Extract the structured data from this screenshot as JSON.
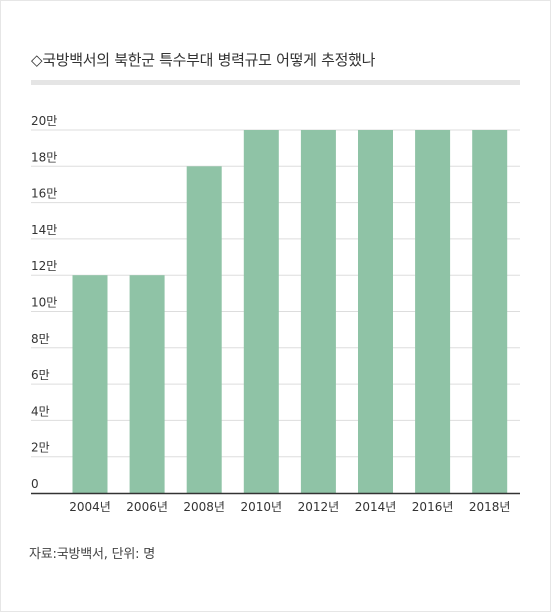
{
  "title": "◇국방백서의 북한군 특수부대 병력규모 어떻게 추정했나",
  "source": "자료:국방백서, 단위: 명",
  "colors": {
    "bar": "#8fc3a6",
    "grid": "#dddddd",
    "axis": "#333333",
    "title_rule": "#e5e5e5"
  },
  "chart_data": {
    "type": "bar",
    "categories": [
      "2004년",
      "2006년",
      "2008년",
      "2010년",
      "2012년",
      "2014년",
      "2016년",
      "2018년"
    ],
    "values": [
      120000,
      120000,
      180000,
      200000,
      200000,
      200000,
      200000,
      200000
    ],
    "y_ticks": [
      0,
      20000,
      40000,
      60000,
      80000,
      100000,
      120000,
      140000,
      160000,
      180000,
      200000
    ],
    "y_tick_labels": [
      "0",
      "2만",
      "4만",
      "6만",
      "8만",
      "10만",
      "12만",
      "14만",
      "16만",
      "18만",
      "20만"
    ],
    "ylim": [
      0,
      200000
    ],
    "grid": true,
    "legend": "none"
  }
}
